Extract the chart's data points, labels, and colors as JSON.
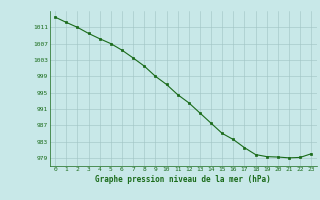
{
  "x": [
    0,
    1,
    2,
    3,
    4,
    5,
    6,
    7,
    8,
    9,
    10,
    11,
    12,
    13,
    14,
    15,
    16,
    17,
    18,
    19,
    20,
    21,
    22,
    23
  ],
  "y": [
    1013.5,
    1012.2,
    1011.0,
    1009.5,
    1008.2,
    1007.0,
    1005.4,
    1003.5,
    1001.5,
    999.0,
    997.0,
    994.5,
    992.5,
    990.0,
    987.5,
    985.0,
    983.5,
    981.5,
    979.8,
    979.3,
    979.2,
    979.0,
    979.1,
    980.0
  ],
  "line_color": "#1a6b1a",
  "marker_color": "#1a6b1a",
  "bg_color": "#c8e8e8",
  "grid_color": "#a0c4c4",
  "xlabel": "Graphe pression niveau de la mer (hPa)",
  "xlabel_color": "#1a6b1a",
  "tick_color": "#1a6b1a",
  "ylim_min": 977,
  "ylim_max": 1015,
  "yticks": [
    979,
    983,
    987,
    991,
    995,
    999,
    1003,
    1007,
    1011
  ],
  "xlim_min": -0.5,
  "xlim_max": 23.5
}
